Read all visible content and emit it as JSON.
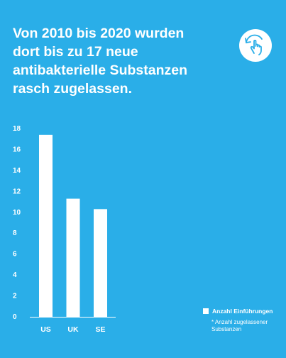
{
  "headline": {
    "lines": [
      "Von 2010 bis 2020 wurden",
      "dort bis zu 17 neue",
      "antibakterielle Substanzen",
      "rasch zugelassen."
    ]
  },
  "swipe_icon": "swipe-hand-icon",
  "legend": {
    "series_label": "Anzahl Einführungen",
    "note": "* Anzahl zugelassener Substanzen"
  },
  "colors": {
    "background": "#2aaee8",
    "bars": "#ffffff",
    "text": "#ffffff"
  },
  "chart_data": {
    "type": "bar",
    "categories": [
      "US",
      "UK",
      "SE"
    ],
    "values": [
      17.4,
      11.3,
      10.3
    ],
    "yticks": [
      0,
      2,
      4,
      6,
      8,
      10,
      12,
      14,
      16,
      18
    ],
    "ylim": [
      0,
      18
    ],
    "title": "",
    "xlabel": "",
    "ylabel": "",
    "grid": false,
    "legend": "right",
    "series": [
      {
        "name": "Anzahl Einführungen",
        "values": [
          17.4,
          11.3,
          10.3
        ]
      }
    ]
  }
}
